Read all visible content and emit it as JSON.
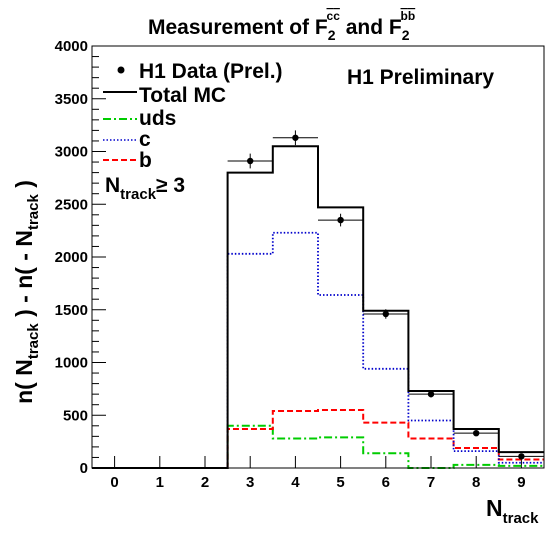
{
  "chart_data": {
    "type": "histogram",
    "title": {
      "prefix": "Measurement of F",
      "sub1": "2",
      "sup1": "c",
      "mid": " and F",
      "sub2": "2",
      "sup2": "b"
    },
    "xlabel": {
      "main": "N",
      "sub": "track"
    },
    "ylabel": {
      "a": "n( N",
      "asub": "track",
      "b": " ) - n( - N",
      "bsub": "track",
      "c": " )"
    },
    "annotation": "H1 Preliminary",
    "cut_label": {
      "main": "N",
      "sub": "track",
      "rest": "≥ 3"
    },
    "xlim": [
      -0.5,
      9.5
    ],
    "ylim": [
      0,
      4000
    ],
    "x_ticks": [
      0,
      1,
      2,
      3,
      4,
      5,
      6,
      7,
      8,
      9
    ],
    "y_ticks": [
      0,
      500,
      1000,
      1500,
      2000,
      2500,
      3000,
      3500,
      4000
    ],
    "grid": false,
    "legend_position": "top-left",
    "bins": [
      0,
      1,
      2,
      3,
      4,
      5,
      6,
      7,
      8,
      9
    ],
    "series": [
      {
        "name": "H1 Data (Prel.)",
        "kind": "points",
        "color": "#000000",
        "x": [
          3,
          4,
          5,
          6,
          7,
          8,
          9
        ],
        "values": [
          2910,
          3130,
          2350,
          1460,
          700,
          330,
          110
        ],
        "errors": [
          70,
          70,
          60,
          45,
          30,
          20,
          15
        ]
      },
      {
        "name": "Total MC",
        "kind": "step",
        "color": "#000000",
        "style": "solid",
        "values": [
          0,
          0,
          0,
          2800,
          3050,
          2470,
          1490,
          730,
          370,
          150
        ]
      },
      {
        "name": "uds",
        "kind": "step",
        "color": "#00cc00",
        "style": "dashdot",
        "values": [
          0,
          0,
          0,
          400,
          280,
          290,
          140,
          0,
          30,
          20
        ]
      },
      {
        "name": "c",
        "kind": "step",
        "color": "#0000cc",
        "style": "dotted",
        "values": [
          0,
          0,
          0,
          2030,
          2230,
          1640,
          940,
          450,
          160,
          50
        ]
      },
      {
        "name": "b",
        "kind": "step",
        "color": "#ff0000",
        "style": "dashed",
        "values": [
          0,
          0,
          0,
          370,
          540,
          550,
          430,
          280,
          190,
          80
        ]
      }
    ]
  }
}
